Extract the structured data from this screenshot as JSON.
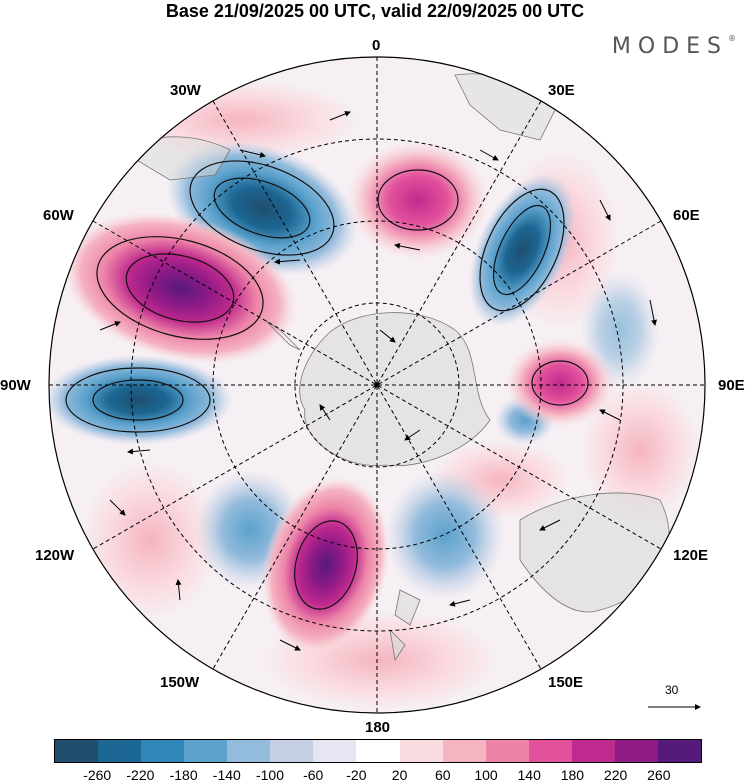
{
  "title": "Base 21/09/2025 00 UTC, valid 22/09/2025 00 UTC",
  "brand": "MODES",
  "brand_mark": "®",
  "longitude_labels": {
    "top": "0",
    "ne": "30E",
    "e60": "60E",
    "e90": "90E",
    "e120": "120E",
    "e150": "150E",
    "bottom": "180",
    "w150": "150W",
    "w120": "120W",
    "w90": "90W",
    "w60": "60W",
    "w30": "30W"
  },
  "vector_scale": "30",
  "colorbar": {
    "colors": [
      "#1f4e6e",
      "#1c6693",
      "#2f86b8",
      "#5aa1cc",
      "#93bbdc",
      "#c4cfe6",
      "#e6e6f2",
      "#ffffff",
      "#fadbdf",
      "#f5b4c2",
      "#ed84a8",
      "#e2519b",
      "#bf2a8e",
      "#8f1a86",
      "#561a7c"
    ],
    "ticks": [
      "-260",
      "-220",
      "-180",
      "-140",
      "-100",
      "-60",
      "-20",
      "20",
      "60",
      "100",
      "140",
      "180",
      "220",
      "260"
    ]
  }
}
